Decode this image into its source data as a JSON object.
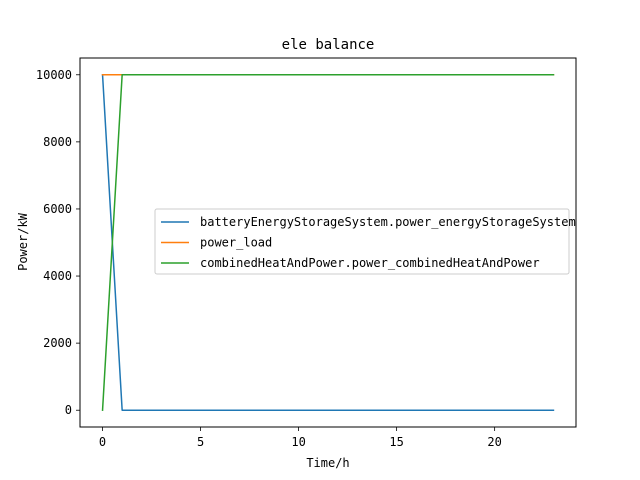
{
  "chart_data": {
    "type": "line",
    "title": "ele balance",
    "xlabel": "Time/h",
    "ylabel": "Power/kW",
    "xlim": [
      -1.15,
      24.15
    ],
    "ylim": [
      -500,
      10500
    ],
    "xticks": [
      0,
      5,
      10,
      15,
      20
    ],
    "yticks": [
      0,
      2000,
      4000,
      6000,
      8000,
      10000
    ],
    "grid": false,
    "legend_position": "center-right",
    "series": [
      {
        "name": "batteryEnergyStorageSystem.power_energyStorageSystem",
        "color": "#1f77b4",
        "x": [
          0,
          1,
          2,
          3,
          4,
          5,
          6,
          7,
          8,
          9,
          10,
          11,
          12,
          13,
          14,
          15,
          16,
          17,
          18,
          19,
          20,
          21,
          22,
          23
        ],
        "values": [
          10000,
          0,
          0,
          0,
          0,
          0,
          0,
          0,
          0,
          0,
          0,
          0,
          0,
          0,
          0,
          0,
          0,
          0,
          0,
          0,
          0,
          0,
          0,
          0
        ]
      },
      {
        "name": "power_load",
        "color": "#ff7f0e",
        "x": [
          0,
          1,
          2,
          3,
          4,
          5,
          6,
          7,
          8,
          9,
          10,
          11,
          12,
          13,
          14,
          15,
          16,
          17,
          18,
          19,
          20,
          21,
          22,
          23
        ],
        "values": [
          10000,
          10000,
          10000,
          10000,
          10000,
          10000,
          10000,
          10000,
          10000,
          10000,
          10000,
          10000,
          10000,
          10000,
          10000,
          10000,
          10000,
          10000,
          10000,
          10000,
          10000,
          10000,
          10000,
          10000
        ]
      },
      {
        "name": "combinedHeatAndPower.power_combinedHeatAndPower",
        "color": "#2ca02c",
        "x": [
          0,
          1,
          2,
          3,
          4,
          5,
          6,
          7,
          8,
          9,
          10,
          11,
          12,
          13,
          14,
          15,
          16,
          17,
          18,
          19,
          20,
          21,
          22,
          23
        ],
        "values": [
          0,
          10000,
          10000,
          10000,
          10000,
          10000,
          10000,
          10000,
          10000,
          10000,
          10000,
          10000,
          10000,
          10000,
          10000,
          10000,
          10000,
          10000,
          10000,
          10000,
          10000,
          10000,
          10000,
          10000
        ]
      }
    ]
  }
}
